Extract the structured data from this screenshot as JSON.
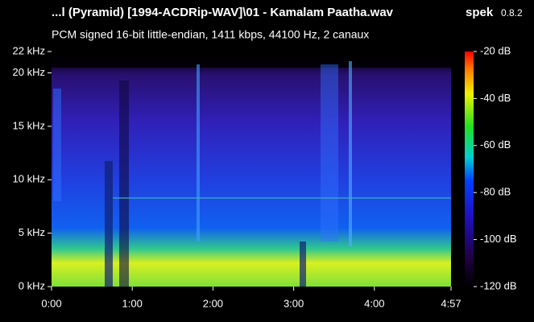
{
  "chart_data": {
    "type": "spectrogram",
    "title": "...l (Pyramid) [1994-ACDRip-WAV]\\01 - Kamalam Paatha.wav",
    "app_name": "spek",
    "app_version": "0.8.2",
    "subtitle": "PCM signed 16-bit little-endian, 1411 kbps, 44100 Hz, 2 canaux",
    "xlim": [
      0,
      297
    ],
    "xticks": [
      {
        "value": 0,
        "label": "0:00"
      },
      {
        "value": 60,
        "label": "1:00"
      },
      {
        "value": 120,
        "label": "2:00"
      },
      {
        "value": 180,
        "label": "3:00"
      },
      {
        "value": 240,
        "label": "4:00"
      },
      {
        "value": 297,
        "label": "4:57"
      }
    ],
    "ylim": [
      0,
      22
    ],
    "yticks": [
      {
        "value": 0,
        "label": "0 kHz"
      },
      {
        "value": 5,
        "label": "5 kHz"
      },
      {
        "value": 10,
        "label": "10 kHz"
      },
      {
        "value": 15,
        "label": "15 kHz"
      },
      {
        "value": 20,
        "label": "20 kHz"
      },
      {
        "value": 22,
        "label": "22 kHz"
      }
    ],
    "colorbar_lim": [
      -120,
      -20
    ],
    "colorbar_ticks": [
      {
        "value": -20,
        "label": "-20 dB"
      },
      {
        "value": -40,
        "label": "-40 dB"
      },
      {
        "value": -60,
        "label": "-60 dB"
      },
      {
        "value": -80,
        "label": "-80 dB"
      },
      {
        "value": -100,
        "label": "-100 dB"
      },
      {
        "value": -120,
        "label": "-120 dB"
      }
    ]
  }
}
